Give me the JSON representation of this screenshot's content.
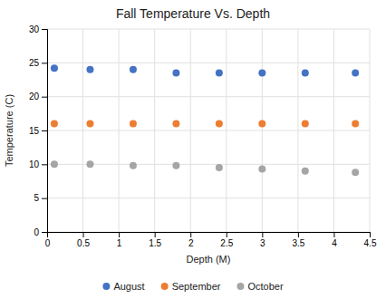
{
  "chart_data": {
    "type": "scatter",
    "title": "Fall Temperature Vs. Depth",
    "x_label": "Depth (M)",
    "y_label": "Temperature (C)",
    "x": [
      0.1,
      0.6,
      1.2,
      1.8,
      2.4,
      3.0,
      3.6,
      4.3
    ],
    "series": [
      {
        "name": "August",
        "color": "#4472C4",
        "values": [
          24.2,
          24.0,
          24.0,
          23.5,
          23.5,
          23.5,
          23.5,
          23.5
        ]
      },
      {
        "name": "September",
        "color": "#ED7D31",
        "values": [
          16.0,
          16.0,
          16.0,
          16.0,
          16.0,
          16.0,
          16.0,
          16.0
        ]
      },
      {
        "name": "October",
        "color": "#A5A5A5",
        "values": [
          10.0,
          10.0,
          9.8,
          9.8,
          9.5,
          9.3,
          9.0,
          8.8
        ]
      }
    ],
    "xlim": [
      0,
      4.5
    ],
    "ylim": [
      0,
      30
    ],
    "xticks": [
      0,
      0.5,
      1,
      1.5,
      2,
      2.5,
      3,
      3.5,
      4,
      4.5
    ],
    "yticks": [
      0,
      5,
      10,
      15,
      20,
      25,
      30
    ],
    "grid": true,
    "legend": "bottom"
  }
}
